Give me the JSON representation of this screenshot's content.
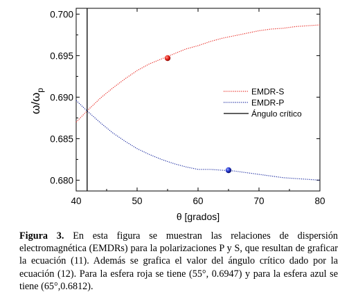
{
  "chart_data": {
    "type": "line",
    "xlabel": "θ [grados]",
    "ylabel": "ω/ω_p",
    "ylabel_main": "ω/ω",
    "ylabel_sub": "p",
    "xlim": [
      40,
      80
    ],
    "ylim": [
      0.6787,
      0.7007
    ],
    "xticks": [
      40,
      50,
      60,
      70,
      80
    ],
    "xtick_labels": [
      "40",
      "50",
      "60",
      "70",
      "80"
    ],
    "yticks": [
      0.68,
      0.685,
      0.69,
      0.695,
      0.7
    ],
    "ytick_labels": [
      "0.680",
      "0.685",
      "0.690",
      "0.695",
      "0.700"
    ],
    "grid": false,
    "legend_position": "right",
    "series": [
      {
        "name": "EMDR-S",
        "color": "#e8261f",
        "style": "dotted",
        "x": [
          40,
          42,
          44,
          46,
          48,
          50,
          52,
          54,
          56,
          58,
          60,
          62,
          64,
          66,
          68,
          70,
          72,
          74,
          76,
          78,
          80
        ],
        "y": [
          0.687,
          0.6885,
          0.6899,
          0.6911,
          0.6922,
          0.6932,
          0.694,
          0.6946,
          0.6952,
          0.6958,
          0.6962,
          0.6967,
          0.6971,
          0.6974,
          0.6977,
          0.698,
          0.6982,
          0.6983,
          0.6985,
          0.6986,
          0.6987
        ]
      },
      {
        "name": "EMDR-P",
        "color": "#1a2aa0",
        "style": "dotted",
        "x": [
          40,
          42,
          44,
          46,
          48,
          50,
          52,
          54,
          56,
          58,
          60,
          62,
          64,
          66,
          68,
          70,
          72,
          74,
          76,
          78,
          80
        ],
        "y": [
          0.6896,
          0.6882,
          0.6869,
          0.6857,
          0.6847,
          0.6838,
          0.6831,
          0.6825,
          0.682,
          0.6816,
          0.6813,
          0.6813,
          0.6812,
          0.6811,
          0.6809,
          0.6807,
          0.6805,
          0.6803,
          0.6802,
          0.6801,
          0.68
        ]
      }
    ],
    "critical_angle": {
      "name": "Ángulo crítico",
      "x": 41.8,
      "color": "#000000"
    },
    "markers": [
      {
        "series": "EMDR-S",
        "x": 55,
        "y": 0.6947,
        "color": "#e8261f"
      },
      {
        "series": "EMDR-P",
        "x": 65,
        "y": 0.6812,
        "color": "#2233cc"
      }
    ],
    "legend": [
      "EMDR-S",
      "EMDR-P",
      "Ángulo crítico"
    ]
  },
  "caption": {
    "label": "Figura 3.",
    "text": " En esta figura se muestran las relaciones de dispersión electromagnética (EMDRs) para la polarizaciones P y S, que resultan de graficar la ecuación (11). Además se grafica el valor del ángulo crítico dado por la ecuación (12). Para la esfera roja se tiene (55°, 0.6947) y para la esfera azul se tiene (65°,0.6812)."
  }
}
